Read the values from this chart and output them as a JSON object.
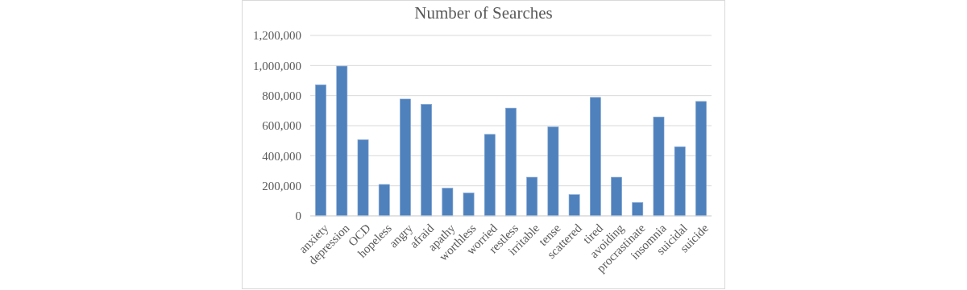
{
  "chart_data": {
    "type": "bar",
    "title": "Number of Searches",
    "categories": [
      "anxiety",
      "depression",
      "OCD",
      "hopeless",
      "angry",
      "afraid",
      "apathy",
      "worthless",
      "worried",
      "restless",
      "irritable",
      "tense",
      "scattered",
      "tired",
      "avoiding",
      "procrastinate",
      "insomnia",
      "suicidal",
      "suicide"
    ],
    "values": [
      872000,
      996000,
      506000,
      209000,
      777000,
      742000,
      184000,
      152000,
      542000,
      717000,
      257000,
      592000,
      141000,
      788000,
      257000,
      89000,
      658000,
      460000,
      761000
    ],
    "color": "#4f81bd",
    "ylim": [
      0,
      1200000
    ],
    "yticks": [
      {
        "value": 0,
        "label": "0"
      },
      {
        "value": 200000,
        "label": "200,000"
      },
      {
        "value": 400000,
        "label": "400,000"
      },
      {
        "value": 600000,
        "label": "600,000"
      },
      {
        "value": 800000,
        "label": "800,000"
      },
      {
        "value": 1000000,
        "label": "1,000,000"
      },
      {
        "value": 1200000,
        "label": "1,200,000"
      }
    ],
    "grid": "y"
  }
}
